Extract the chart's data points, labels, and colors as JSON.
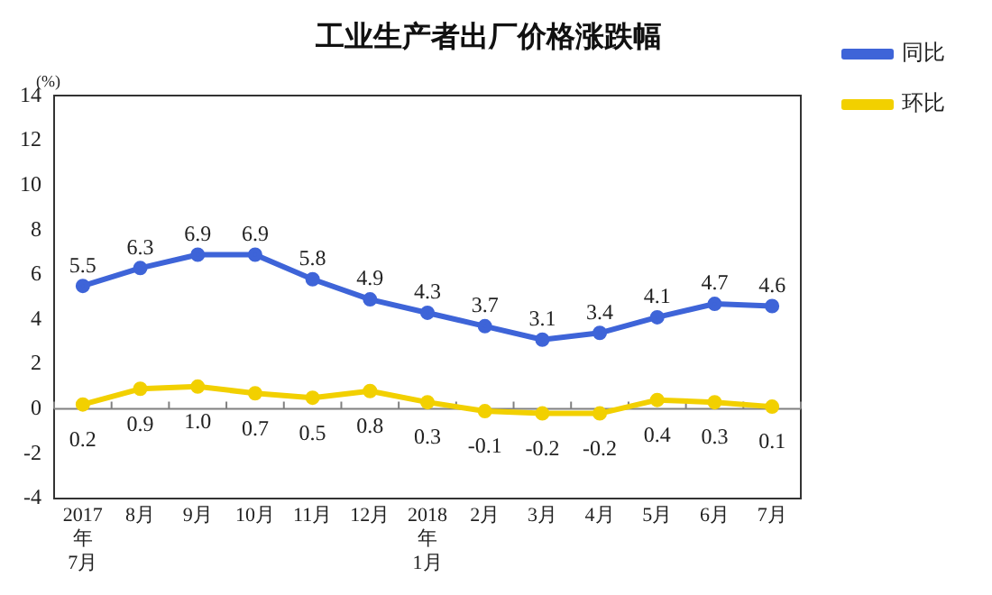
{
  "chart_data": {
    "type": "line",
    "title": "工业生产者出厂价格涨跌幅",
    "ylabel": "(%)",
    "categories": [
      "2017\n年\n7月",
      "8月",
      "9月",
      "10月",
      "11月",
      "12月",
      "2018\n年\n1月",
      "2月",
      "3月",
      "4月",
      "5月",
      "6月",
      "7月"
    ],
    "series": [
      {
        "name": "同比",
        "color": "#3e64d8",
        "values": [
          5.5,
          6.3,
          6.9,
          6.9,
          5.8,
          4.9,
          4.3,
          3.7,
          3.1,
          3.4,
          4.1,
          4.7,
          4.6
        ],
        "value_labels": [
          "5.5",
          "6.3",
          "6.9",
          "6.9",
          "5.8",
          "4.9",
          "4.3",
          "3.7",
          "3.1",
          "3.4",
          "4.1",
          "4.7",
          "4.6"
        ]
      },
      {
        "name": "环比",
        "color": "#f2d000",
        "values": [
          0.2,
          0.9,
          1.0,
          0.7,
          0.5,
          0.8,
          0.3,
          -0.1,
          -0.2,
          -0.2,
          0.4,
          0.3,
          0.1
        ],
        "value_labels": [
          "0.2",
          "0.9",
          "1.0",
          "0.7",
          "0.5",
          "0.8",
          "0.3",
          "-0.1",
          "-0.2",
          "-0.2",
          "0.4",
          "0.3",
          "0.1"
        ]
      }
    ],
    "ylim": [
      -4,
      14
    ],
    "yticks": [
      -4,
      -2,
      0,
      2,
      4,
      6,
      8,
      10,
      12,
      14
    ],
    "ref_lines": [
      {
        "axis": "y",
        "value": 0,
        "color": "#808080"
      }
    ],
    "grid": false,
    "legend": "top right",
    "marker": "circle",
    "line_style": "solid"
  }
}
